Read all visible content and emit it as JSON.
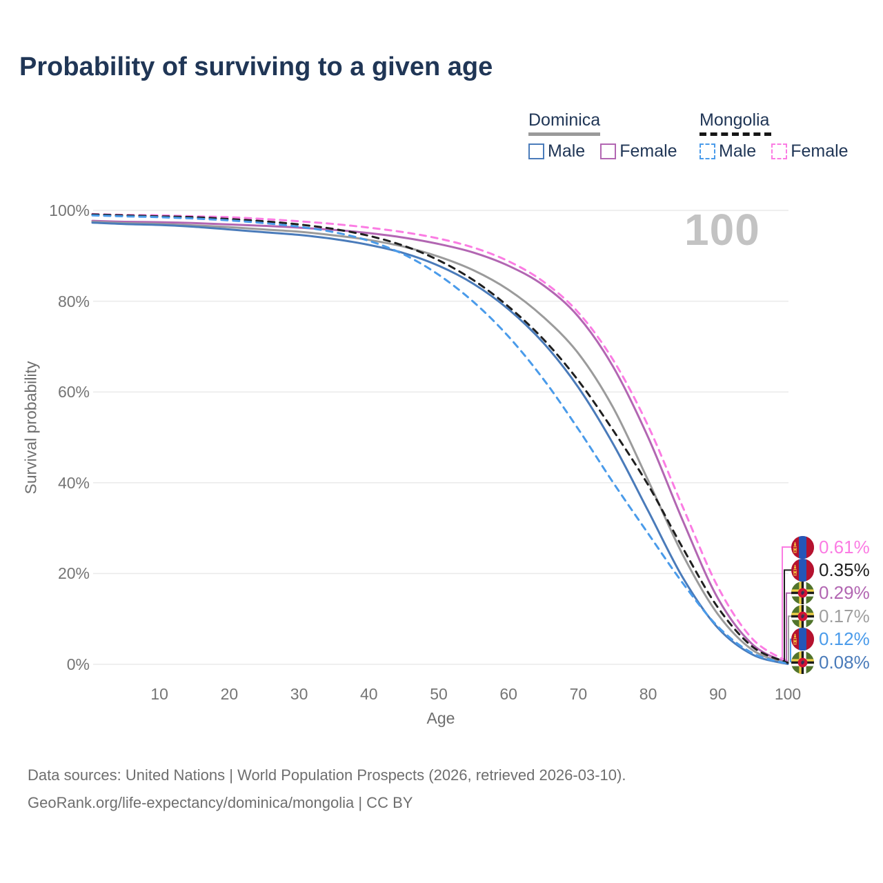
{
  "header": {
    "title": "Probability of surviving to a given age"
  },
  "watermark": "100",
  "legend": {
    "groups": [
      {
        "country": "Dominica",
        "line_style": "solid",
        "underline_color": "#9a9a9a",
        "items": [
          {
            "label": "Male",
            "color": "#4a7bba",
            "dashed": false
          },
          {
            "label": "Female",
            "color": "#b266b2",
            "dashed": false
          }
        ]
      },
      {
        "country": "Mongolia",
        "line_style": "dashed",
        "underline_color": "#161616",
        "items": [
          {
            "label": "Male",
            "color": "#4a9bea",
            "dashed": true
          },
          {
            "label": "Female",
            "color": "#fb7ce3",
            "dashed": true
          }
        ]
      }
    ]
  },
  "axes": {
    "x_title": "Age",
    "y_title": "Survival probability",
    "x_ticks": [
      {
        "label": "10",
        "value": 10
      },
      {
        "label": "20",
        "value": 20
      },
      {
        "label": "30",
        "value": 30
      },
      {
        "label": "40",
        "value": 40
      },
      {
        "label": "50",
        "value": 50
      },
      {
        "label": "60",
        "value": 60
      },
      {
        "label": "70",
        "value": 70
      },
      {
        "label": "80",
        "value": 80
      },
      {
        "label": "90",
        "value": 90
      },
      {
        "label": "100",
        "value": 100
      }
    ],
    "y_ticks": [
      {
        "label": "0%",
        "value": 0
      },
      {
        "label": "20%",
        "value": 20
      },
      {
        "label": "40%",
        "value": 40
      },
      {
        "label": "60%",
        "value": 60
      },
      {
        "label": "80%",
        "value": 80
      },
      {
        "label": "100%",
        "value": 100
      }
    ]
  },
  "end_labels": [
    {
      "value": "0.61%",
      "color": "#fb7ce3",
      "flag": "mongolia"
    },
    {
      "value": "0.35%",
      "color": "#1f1f1f",
      "flag": "mongolia"
    },
    {
      "value": "0.29%",
      "color": "#b266b2",
      "flag": "dominica"
    },
    {
      "value": "0.17%",
      "color": "#9f9f9f",
      "flag": "dominica"
    },
    {
      "value": "0.12%",
      "color": "#4a9bea",
      "flag": "mongolia"
    },
    {
      "value": "0.08%",
      "color": "#4a7bba",
      "flag": "dominica"
    }
  ],
  "footer": {
    "line1": "Data sources: United Nations | World Population Prospects (2026, retrieved 2026-03-10).",
    "line2": "GeoRank.org/life-expectancy/dominica/mongolia | CC BY"
  },
  "chart_data": {
    "type": "line",
    "title": "Probability of surviving to a given age",
    "xlabel": "Age",
    "ylabel": "Survival probability",
    "xlim": [
      0,
      100
    ],
    "ylim": [
      0,
      100
    ],
    "grid": "horizontal",
    "legend_position": "top-right",
    "x": [
      0,
      5,
      10,
      15,
      20,
      25,
      30,
      35,
      40,
      45,
      50,
      55,
      60,
      65,
      70,
      75,
      80,
      85,
      90,
      95,
      100
    ],
    "series": [
      {
        "name": "Dominica Female",
        "country": "Dominica",
        "sex": "Female",
        "color": "#b266b2",
        "dashed": false,
        "final_value_pct": 0.29,
        "values": [
          97.7,
          97.5,
          97.4,
          97.2,
          96.9,
          96.6,
          96.2,
          95.7,
          95.0,
          94.0,
          92.6,
          90.7,
          87.8,
          83.5,
          76.6,
          65.5,
          50.0,
          31.5,
          14.5,
          4.3,
          0.29
        ]
      },
      {
        "name": "Dominica",
        "country": "Dominica",
        "sex": "All",
        "color": "#9b9b9b",
        "dashed": false,
        "final_value_pct": 0.17,
        "values": [
          97.5,
          97.2,
          97.0,
          96.7,
          96.3,
          95.8,
          95.3,
          94.5,
          93.5,
          92.0,
          89.8,
          86.8,
          82.5,
          76.5,
          68.5,
          56.5,
          40.5,
          24.0,
          11.0,
          3.1,
          0.17
        ]
      },
      {
        "name": "Dominica Male",
        "country": "Dominica",
        "sex": "Male",
        "color": "#4a7bba",
        "dashed": false,
        "final_value_pct": 0.08,
        "values": [
          97.3,
          97.0,
          96.8,
          96.4,
          95.8,
          95.2,
          94.6,
          93.7,
          92.4,
          90.6,
          87.8,
          83.8,
          78.2,
          70.8,
          61.0,
          48.5,
          33.8,
          19.0,
          8.0,
          2.1,
          0.08
        ]
      },
      {
        "name": "Mongolia Female",
        "country": "Mongolia",
        "sex": "Female",
        "color": "#fb7ce3",
        "dashed": true,
        "final_value_pct": 0.61,
        "values": [
          99.2,
          99.0,
          98.9,
          98.7,
          98.5,
          98.1,
          97.6,
          97.0,
          96.2,
          95.2,
          93.8,
          91.8,
          88.8,
          84.3,
          77.5,
          67.0,
          52.5,
          34.5,
          17.0,
          5.5,
          0.61
        ]
      },
      {
        "name": "Mongolia",
        "country": "Mongolia",
        "sex": "All",
        "color": "#1f1f1f",
        "dashed": true,
        "final_value_pct": 0.35,
        "values": [
          99.1,
          98.9,
          98.7,
          98.5,
          98.1,
          97.6,
          96.9,
          95.9,
          94.4,
          92.2,
          89.0,
          84.6,
          78.8,
          71.6,
          62.5,
          51.5,
          39.5,
          25.5,
          12.5,
          3.8,
          0.35
        ]
      },
      {
        "name": "Mongolia Male",
        "country": "Mongolia",
        "sex": "Male",
        "color": "#4a9bea",
        "dashed": true,
        "final_value_pct": 0.12,
        "values": [
          98.9,
          98.7,
          98.5,
          98.2,
          97.8,
          97.2,
          96.4,
          95.2,
          93.3,
          90.3,
          85.8,
          79.8,
          72.2,
          62.8,
          51.8,
          40.0,
          28.8,
          17.8,
          8.3,
          2.4,
          0.12
        ]
      }
    ]
  }
}
